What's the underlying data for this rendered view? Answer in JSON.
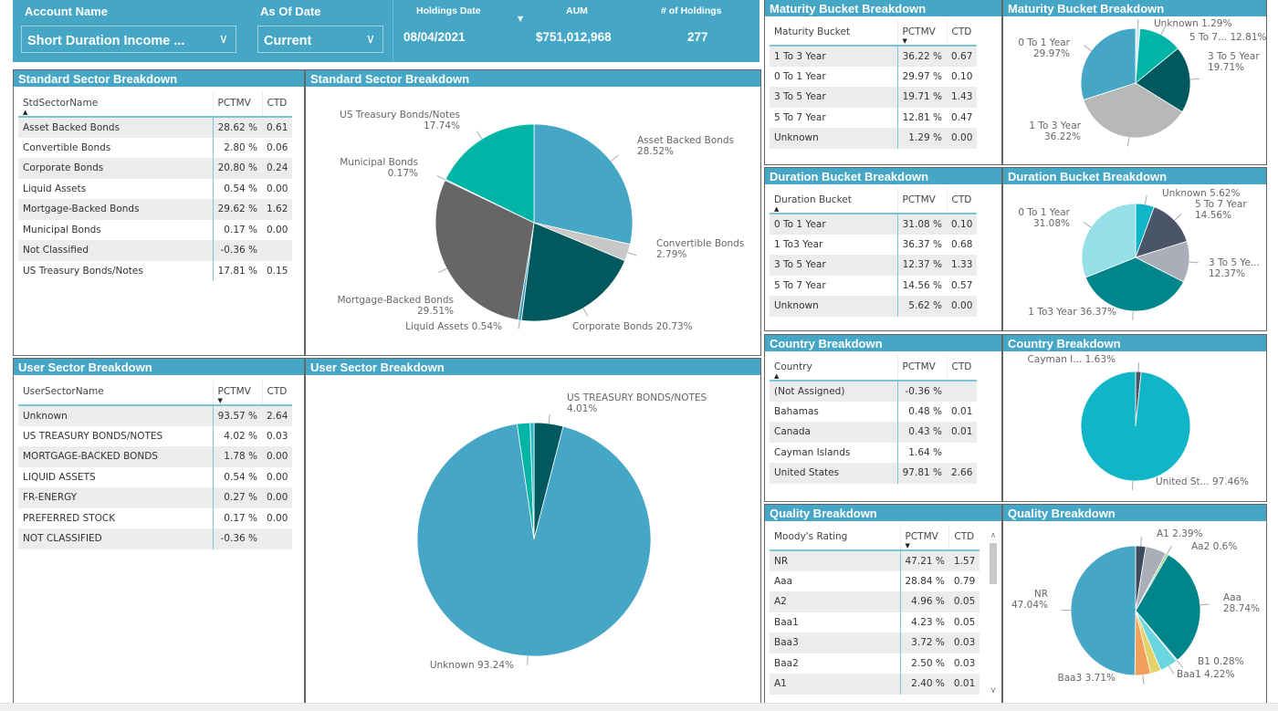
{
  "header": {
    "account_name_label": "Account Name",
    "account_name_value": "Short Duration Income ...",
    "as_of_date_label": "As Of Date",
    "as_of_date_value": "Current",
    "holdings_date_label": "Holdings Date",
    "holdings_date_value": "08/04/2021",
    "aum_label": "AUM",
    "aum_value": "$751,012,968",
    "holdings_count_label": "# of Holdings",
    "holdings_count_value": "277",
    "accent_color": "#45a6c6"
  },
  "tables": {
    "std_sector": {
      "title": "Standard Sector Breakdown",
      "columns": [
        "StdSectorName",
        "PCTMV",
        "CTD"
      ],
      "sort_column": 0,
      "sort_direction": "asc",
      "rows": [
        [
          "Asset Backed Bonds",
          "28.62 %",
          "0.61"
        ],
        [
          "Convertible Bonds",
          "2.80 %",
          "0.06"
        ],
        [
          "Corporate Bonds",
          "20.80 %",
          "0.24"
        ],
        [
          "Liquid Assets",
          "0.54 %",
          "0.00"
        ],
        [
          "Mortgage-Backed Bonds",
          "29.62 %",
          "1.62"
        ],
        [
          "Municipal Bonds",
          "0.17 %",
          "0.00"
        ],
        [
          "Not Classified",
          "-0.36 %",
          ""
        ],
        [
          "US Treasury Bonds/Notes",
          "17.81 %",
          "0.15"
        ]
      ]
    },
    "user_sector": {
      "title": "User Sector Breakdown",
      "columns": [
        "UserSectorName",
        "PCTMV",
        "CTD"
      ],
      "sort_column": 1,
      "sort_direction": "desc",
      "rows": [
        [
          "Unknown",
          "93.57 %",
          "2.64"
        ],
        [
          "US TREASURY BONDS/NOTES",
          "4.02 %",
          "0.03"
        ],
        [
          "MORTGAGE-BACKED BONDS",
          "1.78 %",
          "0.00"
        ],
        [
          "LIQUID ASSETS",
          "0.54 %",
          "0.00"
        ],
        [
          "FR-ENERGY",
          "0.27 %",
          "0.00"
        ],
        [
          "PREFERRED STOCK",
          "0.17 %",
          "0.00"
        ],
        [
          "NOT CLASSIFIED",
          "-0.36 %",
          ""
        ]
      ]
    },
    "maturity": {
      "title": "Maturity Bucket Breakdown",
      "columns": [
        "Maturity Bucket",
        "PCTMV",
        "CTD"
      ],
      "sort_column": 1,
      "sort_direction": "desc",
      "rows": [
        [
          "1 To 3 Year",
          "36.22 %",
          "0.67"
        ],
        [
          "0 To 1 Year",
          "29.97 %",
          "0.10"
        ],
        [
          "3 To 5 Year",
          "19.71 %",
          "1.43"
        ],
        [
          "5 To 7 Year",
          "12.81 %",
          "0.47"
        ],
        [
          "Unknown",
          "1.29 %",
          "0.00"
        ]
      ]
    },
    "duration": {
      "title": "Duration Bucket Breakdown",
      "columns": [
        "Duration Bucket",
        "PCTMV",
        "CTD"
      ],
      "sort_column": 0,
      "sort_direction": "asc",
      "rows": [
        [
          "0 To 1 Year",
          "31.08 %",
          "0.10"
        ],
        [
          "1 To3 Year",
          "36.37 %",
          "0.68"
        ],
        [
          "3 To 5 Year",
          "12.37 %",
          "1.33"
        ],
        [
          "5 To 7 Year",
          "14.56 %",
          "0.57"
        ],
        [
          "Unknown",
          "5.62 %",
          "0.00"
        ]
      ]
    },
    "country": {
      "title": "Country Breakdown",
      "columns": [
        "Country",
        "PCTMV",
        "CTD"
      ],
      "sort_column": 0,
      "sort_direction": "asc",
      "rows": [
        [
          "(Not Assigned)",
          "-0.36 %",
          ""
        ],
        [
          "Bahamas",
          "0.48 %",
          "0.01"
        ],
        [
          "Canada",
          "0.43 %",
          "0.01"
        ],
        [
          "Cayman Islands",
          "1.64 %",
          ""
        ],
        [
          "United States",
          "97.81 %",
          "2.66"
        ]
      ]
    },
    "quality": {
      "title": "Quality Breakdown",
      "columns": [
        "Moody's Rating",
        "PCTMV",
        "CTD"
      ],
      "sort_column": 1,
      "sort_direction": "desc",
      "rows": [
        [
          "NR",
          "47.21 %",
          "1.57"
        ],
        [
          "Aaa",
          "28.84 %",
          "0.79"
        ],
        [
          "A2",
          "4.96 %",
          "0.05"
        ],
        [
          "Baa1",
          "4.23 %",
          "0.05"
        ],
        [
          "Baa3",
          "3.72 %",
          "0.03"
        ],
        [
          "Baa2",
          "2.50 %",
          "0.03"
        ],
        [
          "A1",
          "2.40 %",
          "0.01"
        ]
      ]
    }
  },
  "chart_data": [
    {
      "id": "std_sector",
      "type": "pie",
      "title": "Standard Sector Breakdown",
      "slices": [
        {
          "label": "Asset Backed Bonds\n28.52%",
          "value": 28.52,
          "color": "#45a6c6"
        },
        {
          "label": "Convertible Bonds\n2.79%",
          "value": 2.79,
          "color": "#c8c8c8"
        },
        {
          "label": "Corporate Bonds 20.73%",
          "value": 20.73,
          "color": "#01585f"
        },
        {
          "label": "Liquid Assets 0.54%",
          "value": 0.54,
          "color": "#3aa0c0"
        },
        {
          "label": "Mortgage-Backed Bonds\n29.51%",
          "value": 29.51,
          "color": "#666666"
        },
        {
          "label": "Municipal Bonds\n0.17%",
          "value": 0.17,
          "color": "#8fb8c0"
        },
        {
          "label": "US Treasury Bonds/Notes\n17.74%",
          "value": 17.74,
          "color": "#00b5a5"
        }
      ]
    },
    {
      "id": "user_sector",
      "type": "pie",
      "title": "User Sector Breakdown",
      "slices": [
        {
          "label": "US TREASURY BONDS/NOTES\n4.01%",
          "value": 4.01,
          "color": "#01585f"
        },
        {
          "label": "Unknown 93.24%",
          "value": 93.24,
          "color": "#45a6c6"
        },
        {
          "label": "",
          "value": 1.78,
          "color": "#00b5a5"
        },
        {
          "label": "",
          "value": 0.54,
          "color": "#2fb7c4"
        }
      ]
    },
    {
      "id": "maturity",
      "type": "pie",
      "title": "Maturity Bucket Breakdown",
      "slices": [
        {
          "label": "Unknown 1.29%",
          "value": 1.29,
          "color": "#d4ecf0"
        },
        {
          "label": "5 To 7... 12.81%",
          "value": 12.81,
          "color": "#00b5a5"
        },
        {
          "label": "3 To 5 Year\n19.71%",
          "value": 19.71,
          "color": "#01585f"
        },
        {
          "label": "1 To 3 Year\n36.22%",
          "value": 36.22,
          "color": "#b8b8b8"
        },
        {
          "label": "0 To 1 Year\n29.97%",
          "value": 29.97,
          "color": "#45a6c6"
        }
      ]
    },
    {
      "id": "duration",
      "type": "pie",
      "title": "Duration Bucket Breakdown",
      "slices": [
        {
          "label": "Unknown 5.62%",
          "value": 5.62,
          "color": "#11b5c8"
        },
        {
          "label": "5 To 7 Year\n14.56%",
          "value": 14.56,
          "color": "#4b5568"
        },
        {
          "label": "3 To 5 Ye...\n12.37%",
          "value": 12.37,
          "color": "#a9aeb8"
        },
        {
          "label": "1 To3 Year 36.37%",
          "value": 36.37,
          "color": "#00868a"
        },
        {
          "label": "0 To 1 Year\n31.08%",
          "value": 31.08,
          "color": "#95dfe6"
        }
      ]
    },
    {
      "id": "country",
      "type": "pie",
      "title": "Country Breakdown",
      "slices": [
        {
          "label": "Cayman I... 1.63%",
          "value": 1.63,
          "color": "#4b5568"
        },
        {
          "label": "United St... 97.46%",
          "value": 97.46,
          "color": "#11b5c8"
        }
      ]
    },
    {
      "id": "quality",
      "type": "pie",
      "title": "Quality Breakdown",
      "slices": [
        {
          "label": "A1 2.39%",
          "value": 2.39,
          "color": "#3b4a5c"
        },
        {
          "label": "",
          "value": 4.96,
          "color": "#a9aeb8"
        },
        {
          "label": "Aa2 0.6%",
          "value": 0.6,
          "color": "#9ad18b"
        },
        {
          "label": "Aaa\n28.74%",
          "value": 28.74,
          "color": "#00868a"
        },
        {
          "label": "B1 0.28%",
          "value": 0.28,
          "color": "#cccccc"
        },
        {
          "label": "Baa1 4.22%",
          "value": 4.22,
          "color": "#6ad6e0"
        },
        {
          "label": "",
          "value": 2.5,
          "color": "#e6d26a"
        },
        {
          "label": "Baa3 3.71%",
          "value": 3.71,
          "color": "#f0a05a"
        },
        {
          "label": "NR\n47.04%",
          "value": 47.04,
          "color": "#45a6c6"
        }
      ]
    }
  ]
}
